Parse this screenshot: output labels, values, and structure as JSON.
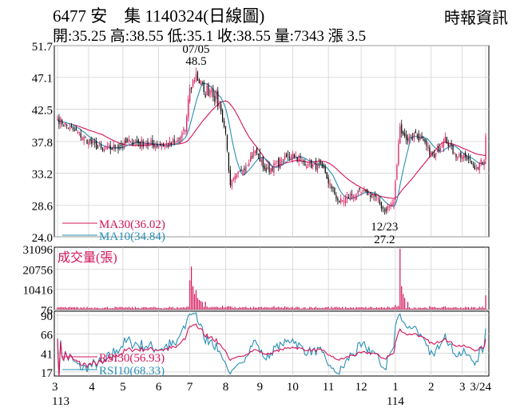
{
  "header": {
    "title": "6477 安　集 1140324(日線圖)",
    "source": "時報資訊",
    "stats": "開:35.25 高:38.55 低:35.1 收:38.55 量:7343 漲 3.5"
  },
  "chart_data": {
    "type": "candlestick",
    "colors": {
      "up": "#d4145a",
      "down": "#000000",
      "ma30": "#d4145a",
      "ma10": "#2a8fb5",
      "volume": "#d4145a",
      "rsi30": "#d4145a",
      "rsi10": "#2a8fb5",
      "grid": "#cccccc"
    },
    "price_panel": {
      "yticks": [
        "51.7",
        "47.1",
        "42.5",
        "37.8",
        "33.2",
        "28.6",
        "24.0"
      ],
      "ylim": [
        24.0,
        51.7
      ],
      "annotations": [
        {
          "label": "07/05",
          "value": "48.5",
          "date": "2024-07-05",
          "price": 48.5
        },
        {
          "label": "12/23",
          "value": "27.2",
          "date": "2024-12-23",
          "price": 27.2
        }
      ],
      "legend": [
        {
          "name": "MA30",
          "value": "MA30(36.02)"
        },
        {
          "name": "MA10",
          "value": "MA10(34.84)"
        }
      ],
      "close_anchors": [
        [
          "2024-03-04",
          41.0
        ],
        [
          "2024-03-18",
          39.5
        ],
        [
          "2024-04-01",
          37.8
        ],
        [
          "2024-04-12",
          36.5
        ],
        [
          "2024-04-25",
          37.0
        ],
        [
          "2024-05-08",
          37.8
        ],
        [
          "2024-05-22",
          37.5
        ],
        [
          "2024-06-05",
          37.2
        ],
        [
          "2024-06-18",
          37.5
        ],
        [
          "2024-06-26",
          39.5
        ],
        [
          "2024-07-01",
          45.5
        ],
        [
          "2024-07-05",
          47.5
        ],
        [
          "2024-07-12",
          45.0
        ],
        [
          "2024-07-19",
          45.5
        ],
        [
          "2024-07-26",
          43.0
        ],
        [
          "2024-08-01",
          39.0
        ],
        [
          "2024-08-06",
          31.5
        ],
        [
          "2024-08-15",
          33.5
        ],
        [
          "2024-08-28",
          36.5
        ],
        [
          "2024-09-06",
          33.5
        ],
        [
          "2024-09-20",
          35.0
        ],
        [
          "2024-10-01",
          36.0
        ],
        [
          "2024-10-15",
          34.5
        ],
        [
          "2024-10-28",
          34.0
        ],
        [
          "2024-11-05",
          31.0
        ],
        [
          "2024-11-12",
          29.0
        ],
        [
          "2024-11-22",
          30.0
        ],
        [
          "2024-12-05",
          30.5
        ],
        [
          "2024-12-13",
          29.8
        ],
        [
          "2024-12-23",
          27.8
        ],
        [
          "2024-12-31",
          29.0
        ],
        [
          "2025-01-06",
          40.0
        ],
        [
          "2025-01-10",
          38.0
        ],
        [
          "2025-01-20",
          39.0
        ],
        [
          "2025-02-05",
          35.5
        ],
        [
          "2025-02-14",
          38.5
        ],
        [
          "2025-02-24",
          36.0
        ],
        [
          "2025-03-05",
          35.5
        ],
        [
          "2025-03-14",
          34.0
        ],
        [
          "2025-03-21",
          35.05
        ],
        [
          "2025-03-24",
          38.55
        ]
      ]
    },
    "volume_panel": {
      "label": "成交量(張)",
      "yticks": [
        "31096",
        "20756",
        "10416",
        "76"
      ],
      "ylim": [
        76,
        31096
      ],
      "spikes": [
        {
          "date": "2024-07-01",
          "volume": 15000
        },
        {
          "date": "2024-07-02",
          "volume": 22000
        },
        {
          "date": "2024-07-03",
          "volume": 12000
        },
        {
          "date": "2024-07-04",
          "volume": 8000
        },
        {
          "date": "2024-07-05",
          "volume": 10000
        },
        {
          "date": "2024-07-08",
          "volume": 6000
        },
        {
          "date": "2024-07-09",
          "volume": 5000
        },
        {
          "date": "2024-07-10",
          "volume": 4500
        },
        {
          "date": "2024-07-11",
          "volume": 4000
        },
        {
          "date": "2024-07-15",
          "volume": 4000
        },
        {
          "date": "2025-01-06",
          "volume": 31096
        },
        {
          "date": "2025-01-07",
          "volume": 12000
        },
        {
          "date": "2025-01-08",
          "volume": 8000
        },
        {
          "date": "2025-01-09",
          "volume": 6000
        },
        {
          "date": "2025-01-13",
          "volume": 4000
        },
        {
          "date": "2025-03-24",
          "volume": 7343
        }
      ]
    },
    "rsi_panel": {
      "yticks": [
        "90",
        "66",
        "41",
        "17"
      ],
      "ylim": [
        17,
        90
      ],
      "legend": [
        {
          "name": "RSI30",
          "value": "RSI30(56.93)"
        },
        {
          "name": "RSI10",
          "value": "RSI10(68.33)"
        }
      ]
    },
    "x_axis": {
      "start": "2024-03-04",
      "end": "2025-03-24",
      "ticks": [
        {
          "label": "3",
          "date": "2024-03-01"
        },
        {
          "label": "4",
          "date": "2024-04-01"
        },
        {
          "label": "5",
          "date": "2024-05-01"
        },
        {
          "label": "6",
          "date": "2024-06-01"
        },
        {
          "label": "7",
          "date": "2024-07-01"
        },
        {
          "label": "8",
          "date": "2024-08-01"
        },
        {
          "label": "9",
          "date": "2024-09-01"
        },
        {
          "label": "10",
          "date": "2024-10-01"
        },
        {
          "label": "11",
          "date": "2024-11-01"
        },
        {
          "label": "12",
          "date": "2024-12-01"
        },
        {
          "label": "1",
          "date": "2025-01-01"
        },
        {
          "label": "2",
          "date": "2025-02-01"
        },
        {
          "label": "3",
          "date": "2025-03-01"
        },
        {
          "label": "3/24",
          "date": "2025-03-24"
        }
      ],
      "year_labels": [
        {
          "label": "113",
          "date": "2024-03-01"
        },
        {
          "label": "114",
          "date": "2025-01-01"
        }
      ]
    }
  }
}
